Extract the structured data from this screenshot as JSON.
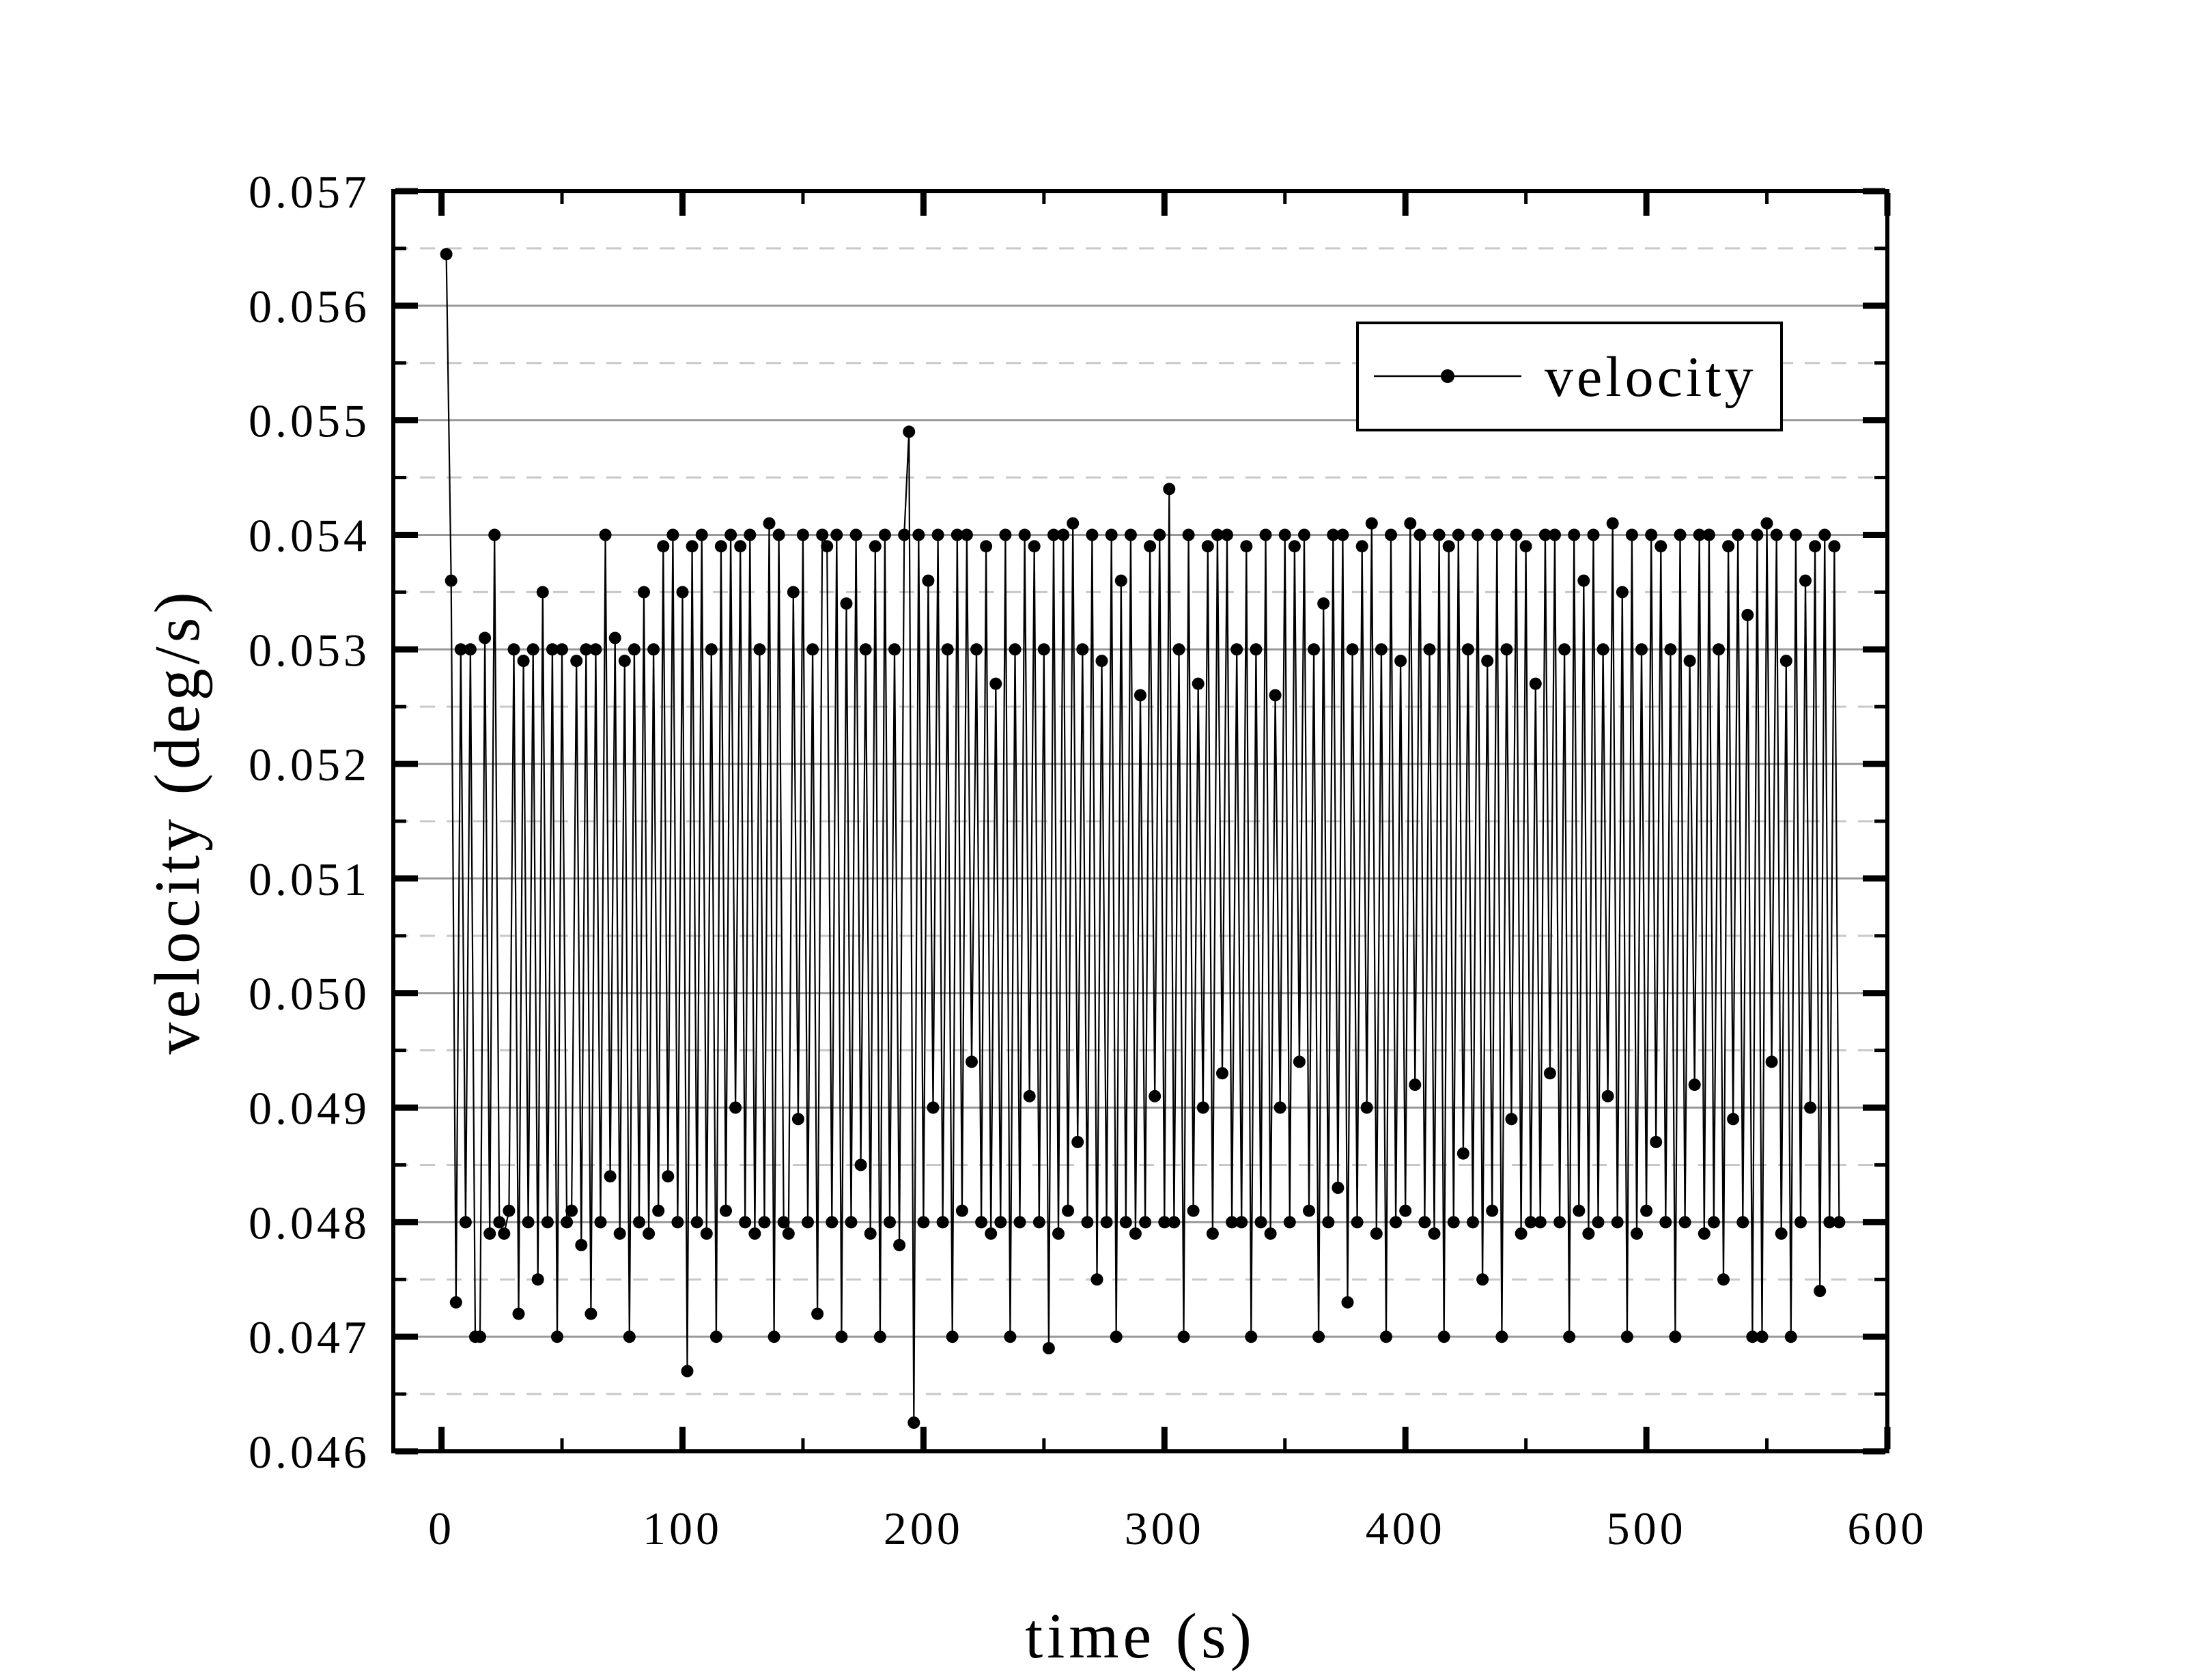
{
  "page": {
    "background": "#ffffff"
  },
  "chart_data": {
    "type": "line",
    "title": "",
    "xlabel": "time (s)",
    "ylabel": "velocity (deg/s)",
    "xlim": [
      -20,
      600
    ],
    "ylim": [
      0.046,
      0.057
    ],
    "grid": {
      "major_style": "solid",
      "minor_style": "dashed",
      "major_color": "#999999",
      "minor_color": "#c8c8c8",
      "vertical_gridlines": false
    },
    "axes_color": "#000000",
    "xticks": {
      "major": [
        0,
        100,
        200,
        300,
        400,
        500,
        600
      ],
      "labels": [
        "0",
        "100",
        "200",
        "300",
        "400",
        "500",
        "600"
      ],
      "minor": [
        50,
        150,
        250,
        350,
        450,
        550
      ]
    },
    "yticks": {
      "major": [
        0.046,
        0.047,
        0.048,
        0.049,
        0.05,
        0.051,
        0.052,
        0.053,
        0.054,
        0.055,
        0.056,
        0.057
      ],
      "labels": [
        "0.046",
        "0.047",
        "0.048",
        "0.049",
        "0.050",
        "0.051",
        "0.052",
        "0.053",
        "0.054",
        "0.055",
        "0.056",
        "0.057"
      ],
      "minor": [
        0.0465,
        0.0475,
        0.0485,
        0.0495,
        0.0505,
        0.0515,
        0.0525,
        0.0535,
        0.0545,
        0.0555,
        0.0565
      ]
    },
    "legend": {
      "label": "velocity",
      "position": "upper right",
      "marker": "dot-on-line",
      "line_color": "#000000",
      "marker_color": "#000000"
    },
    "series": [
      {
        "name": "velocity",
        "color": "#000000",
        "marker": "point",
        "t": [
          2,
          4,
          6,
          8,
          10,
          12,
          14,
          16,
          18,
          20,
          22,
          24,
          26,
          28,
          30,
          32,
          34,
          36,
          38,
          40,
          42,
          44,
          46,
          48,
          50,
          52,
          54,
          56,
          58,
          60,
          62,
          64,
          66,
          68,
          70,
          72,
          74,
          76,
          78,
          80,
          82,
          84,
          86,
          88,
          90,
          92,
          94,
          96,
          98,
          100,
          102,
          104,
          106,
          108,
          110,
          112,
          114,
          116,
          118,
          120,
          122,
          124,
          126,
          128,
          130,
          132,
          134,
          136,
          138,
          140,
          142,
          144,
          146,
          148,
          150,
          152,
          154,
          156,
          158,
          160,
          162,
          164,
          166,
          168,
          170,
          172,
          174,
          176,
          178,
          180,
          182,
          184,
          186,
          188,
          190,
          192,
          194,
          196,
          198,
          200,
          202,
          204,
          206,
          208,
          210,
          212,
          214,
          216,
          218,
          220,
          222,
          224,
          226,
          228,
          230,
          232,
          234,
          236,
          238,
          240,
          242,
          244,
          246,
          248,
          250,
          252,
          254,
          256,
          258,
          260,
          262,
          264,
          266,
          268,
          270,
          272,
          274,
          276,
          278,
          280,
          282,
          284,
          286,
          288,
          290,
          292,
          294,
          296,
          298,
          300,
          302,
          304,
          306,
          308,
          310,
          312,
          314,
          316,
          318,
          320,
          322,
          324,
          326,
          328,
          330,
          332,
          334,
          336,
          338,
          340,
          342,
          344,
          346,
          348,
          350,
          352,
          354,
          356,
          358,
          360,
          362,
          364,
          366,
          368,
          370,
          372,
          374,
          376,
          378,
          380,
          382,
          384,
          386,
          388,
          390,
          392,
          394,
          396,
          398,
          400,
          402,
          404,
          406,
          408,
          410,
          412,
          414,
          416,
          418,
          420,
          422,
          424,
          426,
          428,
          430,
          432,
          434,
          436,
          438,
          440,
          442,
          444,
          446,
          448,
          450,
          452,
          454,
          456,
          458,
          460,
          462,
          464,
          466,
          468,
          470,
          472,
          474,
          476,
          478,
          480,
          482,
          484,
          486,
          488,
          490,
          492,
          494,
          496,
          498,
          500,
          502,
          504,
          506,
          508,
          510,
          512,
          514,
          516,
          518,
          520,
          522,
          524,
          526,
          528,
          530,
          532,
          534,
          536,
          538,
          540,
          542,
          544,
          546,
          548,
          550,
          552,
          554,
          556,
          558,
          560,
          562,
          564,
          566,
          568,
          570,
          572,
          574,
          576,
          578,
          580
        ],
        "values": [
          0.05645,
          0.0536,
          0.0473,
          0.053,
          0.048,
          0.053,
          0.047,
          0.047,
          0.0531,
          0.0479,
          0.054,
          0.048,
          0.0479,
          0.0481,
          0.053,
          0.0472,
          0.0529,
          0.048,
          0.053,
          0.0475,
          0.0535,
          0.048,
          0.053,
          0.047,
          0.053,
          0.048,
          0.0481,
          0.0529,
          0.0478,
          0.053,
          0.0472,
          0.053,
          0.048,
          0.054,
          0.0484,
          0.0531,
          0.0479,
          0.0529,
          0.047,
          0.053,
          0.048,
          0.0535,
          0.0479,
          0.053,
          0.0481,
          0.0539,
          0.0484,
          0.054,
          0.048,
          0.0535,
          0.0467,
          0.0539,
          0.048,
          0.054,
          0.0479,
          0.053,
          0.047,
          0.0539,
          0.0481,
          0.054,
          0.049,
          0.0539,
          0.048,
          0.054,
          0.0479,
          0.053,
          0.048,
          0.0541,
          0.047,
          0.054,
          0.048,
          0.0479,
          0.0535,
          0.0489,
          0.054,
          0.048,
          0.053,
          0.0472,
          0.054,
          0.0539,
          0.048,
          0.054,
          0.047,
          0.0534,
          0.048,
          0.054,
          0.0485,
          0.053,
          0.0479,
          0.0539,
          0.047,
          0.054,
          0.048,
          0.053,
          0.0478,
          0.054,
          0.0549,
          0.04625,
          0.054,
          0.048,
          0.0536,
          0.049,
          0.054,
          0.048,
          0.053,
          0.047,
          0.054,
          0.0481,
          0.054,
          0.0494,
          0.053,
          0.048,
          0.0539,
          0.0479,
          0.0527,
          0.048,
          0.054,
          0.047,
          0.053,
          0.048,
          0.054,
          0.0491,
          0.0539,
          0.048,
          0.053,
          0.0469,
          0.054,
          0.0479,
          0.054,
          0.0481,
          0.0541,
          0.0487,
          0.053,
          0.048,
          0.054,
          0.0475,
          0.0529,
          0.048,
          0.054,
          0.047,
          0.0536,
          0.048,
          0.054,
          0.0479,
          0.0526,
          0.048,
          0.0539,
          0.0491,
          0.054,
          0.048,
          0.0544,
          0.048,
          0.053,
          0.047,
          0.054,
          0.0481,
          0.0527,
          0.049,
          0.0539,
          0.0479,
          0.054,
          0.0493,
          0.054,
          0.048,
          0.053,
          0.048,
          0.0539,
          0.047,
          0.053,
          0.048,
          0.054,
          0.0479,
          0.0526,
          0.049,
          0.054,
          0.048,
          0.0539,
          0.0494,
          0.054,
          0.0481,
          0.053,
          0.047,
          0.0534,
          0.048,
          0.054,
          0.0483,
          0.054,
          0.0473,
          0.053,
          0.048,
          0.0539,
          0.049,
          0.0541,
          0.0479,
          0.053,
          0.047,
          0.054,
          0.048,
          0.0529,
          0.0481,
          0.0541,
          0.0492,
          0.054,
          0.048,
          0.053,
          0.0479,
          0.054,
          0.047,
          0.0539,
          0.048,
          0.054,
          0.0486,
          0.053,
          0.048,
          0.054,
          0.0475,
          0.0529,
          0.0481,
          0.054,
          0.047,
          0.053,
          0.0489,
          0.054,
          0.0479,
          0.0539,
          0.048,
          0.0527,
          0.048,
          0.054,
          0.0493,
          0.054,
          0.048,
          0.053,
          0.047,
          0.054,
          0.0481,
          0.0536,
          0.0479,
          0.054,
          0.048,
          0.053,
          0.0491,
          0.0541,
          0.048,
          0.0535,
          0.047,
          0.054,
          0.0479,
          0.053,
          0.0481,
          0.054,
          0.0487,
          0.0539,
          0.048,
          0.053,
          0.047,
          0.054,
          0.048,
          0.0529,
          0.0492,
          0.054,
          0.0479,
          0.054,
          0.048,
          0.053,
          0.0475,
          0.0539,
          0.0489,
          0.054,
          0.048,
          0.0533,
          0.047,
          0.054,
          0.047,
          0.0541,
          0.0494,
          0.054,
          0.0479,
          0.0529,
          0.047,
          0.054,
          0.048,
          0.0536,
          0.049,
          0.0539,
          0.0474,
          0.054,
          0.048,
          0.0539,
          0.048
        ]
      }
    ]
  }
}
